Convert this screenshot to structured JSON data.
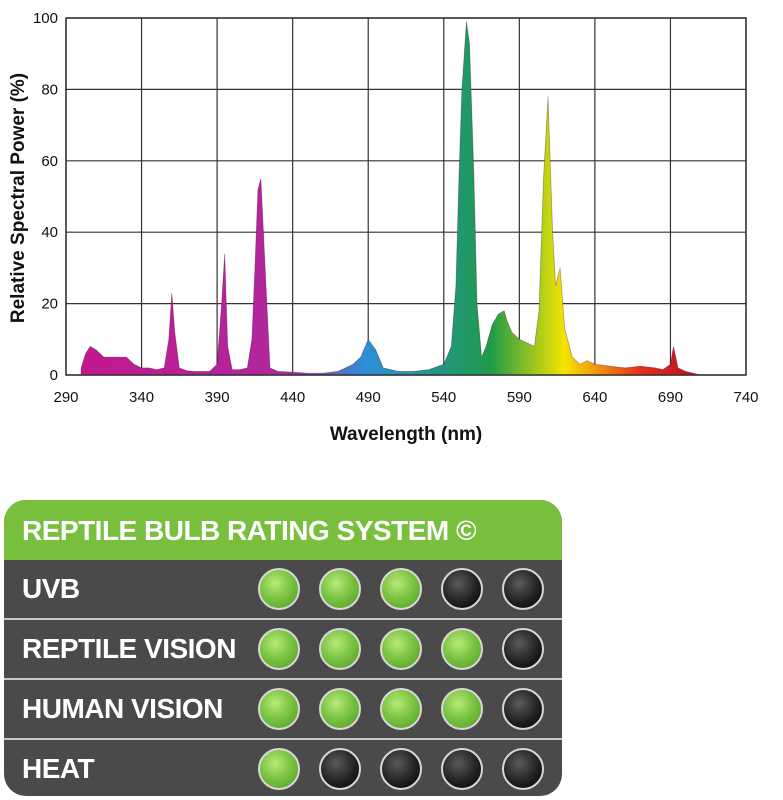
{
  "chart_data": {
    "type": "area",
    "title": "",
    "xlabel": "Wavelength (nm)",
    "ylabel": "Relative Spectral Power (%)",
    "xlim": [
      290,
      740
    ],
    "ylim": [
      0,
      100
    ],
    "xticks": [
      "290",
      "340",
      "390",
      "440",
      "490",
      "540",
      "590",
      "640",
      "690",
      "740"
    ],
    "yticks": [
      "0",
      "20",
      "40",
      "60",
      "80",
      "100"
    ],
    "grid": true,
    "series": [
      {
        "color_stops": [
          "#c2188f",
          "#b0289e",
          "#2d8fd8",
          "#1d9b4a",
          "#f5e400",
          "#e8321a",
          "#b01020"
        ],
        "x": [
          300,
          303,
          306,
          310,
          315,
          320,
          325,
          330,
          335,
          340,
          345,
          350,
          355,
          358,
          360,
          362,
          365,
          370,
          375,
          380,
          385,
          390,
          393,
          395,
          397,
          400,
          405,
          410,
          413,
          415,
          417,
          419,
          422,
          425,
          430,
          440,
          450,
          460,
          470,
          480,
          485,
          490,
          495,
          500,
          510,
          520,
          530,
          540,
          545,
          548,
          550,
          552,
          555,
          557,
          560,
          562,
          565,
          568,
          572,
          576,
          580,
          582,
          585,
          590,
          595,
          600,
          603,
          606,
          609,
          612,
          614,
          617,
          620,
          625,
          630,
          635,
          640,
          650,
          660,
          670,
          680,
          685,
          690,
          692,
          695,
          700,
          705,
          710
        ],
        "y": [
          2,
          6,
          8,
          7,
          5,
          5,
          5,
          5,
          3,
          2,
          2,
          1.5,
          2,
          10,
          23,
          12,
          2,
          1.2,
          1,
          1,
          1,
          3,
          20,
          34,
          8,
          1.5,
          1.5,
          2,
          10,
          30,
          52,
          55,
          28,
          2,
          1,
          0.8,
          0.5,
          0.5,
          1,
          3,
          5,
          10,
          7,
          2,
          1,
          1,
          1.5,
          3,
          8,
          25,
          55,
          80,
          99,
          93,
          55,
          20,
          5,
          8,
          14,
          17,
          18,
          15,
          12,
          10,
          9,
          8,
          18,
          55,
          78,
          40,
          25,
          30,
          13,
          5,
          3,
          4,
          3,
          2.5,
          2,
          2.5,
          2,
          1.5,
          3,
          8,
          2,
          1,
          0.5,
          0
        ]
      }
    ]
  },
  "rating": {
    "title": "REPTILE BULB RATING SYSTEM ©",
    "rows": [
      {
        "label": "UVB",
        "score": 3,
        "max": 5
      },
      {
        "label": "REPTILE VISION",
        "score": 4,
        "max": 5
      },
      {
        "label": "HUMAN VISION",
        "score": 4,
        "max": 5
      },
      {
        "label": "HEAT",
        "score": 1,
        "max": 5
      }
    ]
  }
}
